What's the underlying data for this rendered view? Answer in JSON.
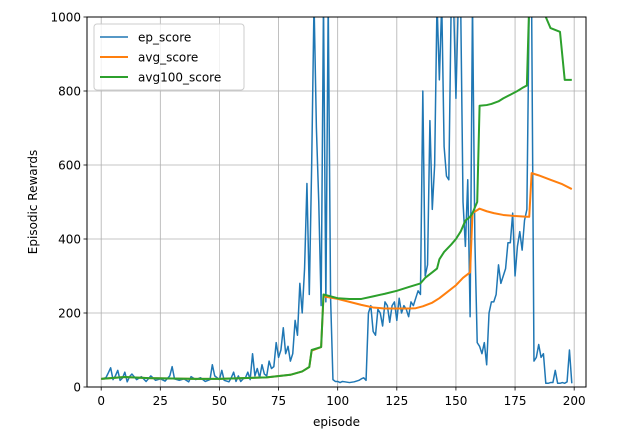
{
  "chart_data": {
    "type": "line",
    "title": "",
    "xlabel": "episode",
    "ylabel": "Episodic Rewards",
    "xlim": [
      -6,
      205
    ],
    "ylim": [
      0,
      1000
    ],
    "xticks": [
      0,
      25,
      50,
      75,
      100,
      125,
      150,
      175,
      200
    ],
    "yticks": [
      0,
      200,
      400,
      600,
      800,
      1000
    ],
    "grid": true,
    "legend": "top-left",
    "series": [
      {
        "name": "ep_score",
        "color": "#1f77b4",
        "points": [
          [
            0,
            22
          ],
          [
            2,
            25
          ],
          [
            3,
            38
          ],
          [
            4,
            52
          ],
          [
            5,
            20
          ],
          [
            6,
            30
          ],
          [
            7,
            45
          ],
          [
            8,
            18
          ],
          [
            9,
            24
          ],
          [
            10,
            40
          ],
          [
            11,
            14
          ],
          [
            12,
            28
          ],
          [
            13,
            35
          ],
          [
            15,
            20
          ],
          [
            17,
            28
          ],
          [
            19,
            15
          ],
          [
            21,
            30
          ],
          [
            23,
            18
          ],
          [
            25,
            22
          ],
          [
            27,
            16
          ],
          [
            29,
            30
          ],
          [
            30,
            55
          ],
          [
            31,
            22
          ],
          [
            33,
            18
          ],
          [
            35,
            22
          ],
          [
            37,
            14
          ],
          [
            38,
            28
          ],
          [
            40,
            20
          ],
          [
            42,
            25
          ],
          [
            44,
            15
          ],
          [
            46,
            20
          ],
          [
            47,
            60
          ],
          [
            48,
            30
          ],
          [
            50,
            20
          ],
          [
            51,
            45
          ],
          [
            52,
            18
          ],
          [
            54,
            14
          ],
          [
            55,
            25
          ],
          [
            56,
            40
          ],
          [
            57,
            15
          ],
          [
            58,
            30
          ],
          [
            59,
            15
          ],
          [
            60,
            22
          ],
          [
            61,
            25
          ],
          [
            62,
            40
          ],
          [
            63,
            20
          ],
          [
            64,
            90
          ],
          [
            65,
            30
          ],
          [
            66,
            50
          ],
          [
            67,
            25
          ],
          [
            68,
            60
          ],
          [
            69,
            35
          ],
          [
            70,
            30
          ],
          [
            71,
            70
          ],
          [
            72,
            50
          ],
          [
            73,
            55
          ],
          [
            74,
            120
          ],
          [
            75,
            80
          ],
          [
            76,
            100
          ],
          [
            77,
            160
          ],
          [
            78,
            90
          ],
          [
            79,
            110
          ],
          [
            80,
            70
          ],
          [
            81,
            90
          ],
          [
            82,
            180
          ],
          [
            83,
            140
          ],
          [
            84,
            280
          ],
          [
            85,
            200
          ],
          [
            86,
            320
          ],
          [
            87,
            550
          ],
          [
            88,
            250
          ],
          [
            89,
            600
          ],
          [
            90,
            1040
          ],
          [
            91,
            700
          ],
          [
            92,
            500
          ],
          [
            93,
            220
          ],
          [
            94,
            1040
          ],
          [
            95,
            230
          ],
          [
            96,
            1040
          ],
          [
            97,
            240
          ],
          [
            98,
            20
          ],
          [
            99,
            15
          ],
          [
            100,
            15
          ],
          [
            101,
            12
          ],
          [
            102,
            15
          ],
          [
            103,
            14
          ],
          [
            105,
            12
          ],
          [
            107,
            14
          ],
          [
            109,
            18
          ],
          [
            110,
            22
          ],
          [
            111,
            25
          ],
          [
            112,
            18
          ],
          [
            113,
            200
          ],
          [
            114,
            220
          ],
          [
            115,
            150
          ],
          [
            116,
            140
          ],
          [
            117,
            210
          ],
          [
            118,
            200
          ],
          [
            119,
            165
          ],
          [
            120,
            230
          ],
          [
            121,
            220
          ],
          [
            122,
            175
          ],
          [
            123,
            220
          ],
          [
            124,
            230
          ],
          [
            125,
            180
          ],
          [
            126,
            240
          ],
          [
            127,
            200
          ],
          [
            128,
            220
          ],
          [
            129,
            210
          ],
          [
            130,
            190
          ],
          [
            131,
            230
          ],
          [
            132,
            220
          ],
          [
            133,
            240
          ],
          [
            134,
            260
          ],
          [
            135,
            250
          ],
          [
            136,
            800
          ],
          [
            137,
            300
          ],
          [
            138,
            330
          ],
          [
            139,
            720
          ],
          [
            140,
            480
          ],
          [
            141,
            600
          ],
          [
            142,
            1040
          ],
          [
            143,
            830
          ],
          [
            144,
            1040
          ],
          [
            145,
            650
          ],
          [
            146,
            570
          ],
          [
            147,
            560
          ],
          [
            148,
            1040
          ],
          [
            149,
            1040
          ],
          [
            150,
            780
          ],
          [
            151,
            1040
          ],
          [
            152,
            1040
          ],
          [
            153,
            500
          ],
          [
            154,
            380
          ],
          [
            155,
            560
          ],
          [
            156,
            190
          ],
          [
            157,
            1040
          ],
          [
            158,
            400
          ],
          [
            159,
            120
          ],
          [
            160,
            110
          ],
          [
            161,
            90
          ],
          [
            162,
            120
          ],
          [
            163,
            60
          ],
          [
            164,
            200
          ],
          [
            165,
            230
          ],
          [
            166,
            230
          ],
          [
            167,
            250
          ],
          [
            168,
            330
          ],
          [
            169,
            280
          ],
          [
            170,
            300
          ],
          [
            171,
            320
          ],
          [
            172,
            390
          ],
          [
            173,
            390
          ],
          [
            174,
            470
          ],
          [
            175,
            300
          ],
          [
            176,
            380
          ],
          [
            177,
            420
          ],
          [
            178,
            370
          ],
          [
            179,
            450
          ],
          [
            180,
            480
          ],
          [
            181,
            1040
          ],
          [
            182,
            1040
          ],
          [
            183,
            70
          ],
          [
            184,
            80
          ],
          [
            185,
            115
          ],
          [
            186,
            80
          ],
          [
            187,
            90
          ],
          [
            188,
            10
          ],
          [
            189,
            10
          ],
          [
            190,
            12
          ],
          [
            191,
            12
          ],
          [
            192,
            45
          ],
          [
            193,
            10
          ],
          [
            194,
            10
          ],
          [
            195,
            12
          ],
          [
            196,
            10
          ],
          [
            197,
            14
          ],
          [
            198,
            100
          ],
          [
            199,
            10
          ]
        ]
      },
      {
        "name": "avg_score",
        "color": "#ff7f0e",
        "points": [
          [
            0,
            22
          ],
          [
            10,
            27
          ],
          [
            20,
            24
          ],
          [
            30,
            23
          ],
          [
            40,
            22
          ],
          [
            50,
            22
          ],
          [
            60,
            24
          ],
          [
            70,
            26
          ],
          [
            80,
            33
          ],
          [
            85,
            42
          ],
          [
            88,
            54
          ],
          [
            89,
            98
          ],
          [
            93,
            108
          ],
          [
            94,
            245
          ],
          [
            100,
            238
          ],
          [
            105,
            230
          ],
          [
            110,
            222
          ],
          [
            115,
            215
          ],
          [
            120,
            212
          ],
          [
            125,
            212
          ],
          [
            130,
            212
          ],
          [
            133,
            213
          ],
          [
            136,
            218
          ],
          [
            140,
            228
          ],
          [
            143,
            240
          ],
          [
            146,
            255
          ],
          [
            150,
            275
          ],
          [
            153,
            295
          ],
          [
            155,
            305
          ],
          [
            156,
            310
          ],
          [
            157,
            470
          ],
          [
            160,
            482
          ],
          [
            163,
            475
          ],
          [
            166,
            470
          ],
          [
            170,
            465
          ],
          [
            175,
            462
          ],
          [
            180,
            460
          ],
          [
            181,
            460
          ],
          [
            182,
            578
          ],
          [
            185,
            572
          ],
          [
            190,
            560
          ],
          [
            195,
            548
          ],
          [
            199,
            535
          ]
        ]
      },
      {
        "name": "avg100_score",
        "color": "#2ca02c",
        "points": [
          [
            0,
            22
          ],
          [
            10,
            27
          ],
          [
            20,
            24
          ],
          [
            30,
            23
          ],
          [
            40,
            22
          ],
          [
            50,
            22
          ],
          [
            60,
            24
          ],
          [
            70,
            26
          ],
          [
            80,
            33
          ],
          [
            85,
            42
          ],
          [
            88,
            54
          ],
          [
            89,
            100
          ],
          [
            93,
            108
          ],
          [
            94,
            250
          ],
          [
            100,
            240
          ],
          [
            105,
            238
          ],
          [
            110,
            238
          ],
          [
            115,
            245
          ],
          [
            120,
            252
          ],
          [
            125,
            260
          ],
          [
            130,
            270
          ],
          [
            135,
            280
          ],
          [
            137,
            295
          ],
          [
            140,
            310
          ],
          [
            142,
            320
          ],
          [
            143,
            345
          ],
          [
            145,
            365
          ],
          [
            148,
            385
          ],
          [
            150,
            400
          ],
          [
            152,
            420
          ],
          [
            154,
            450
          ],
          [
            156,
            460
          ],
          [
            157,
            470
          ],
          [
            159,
            500
          ],
          [
            160,
            760
          ],
          [
            163,
            762
          ],
          [
            165,
            765
          ],
          [
            168,
            772
          ],
          [
            170,
            780
          ],
          [
            173,
            790
          ],
          [
            176,
            800
          ],
          [
            178,
            808
          ],
          [
            180,
            815
          ],
          [
            181,
            1040
          ],
          [
            185,
            1040
          ],
          [
            188,
            1000
          ],
          [
            190,
            970
          ],
          [
            194,
            960
          ],
          [
            196,
            830
          ],
          [
            199,
            830
          ]
        ]
      }
    ]
  }
}
